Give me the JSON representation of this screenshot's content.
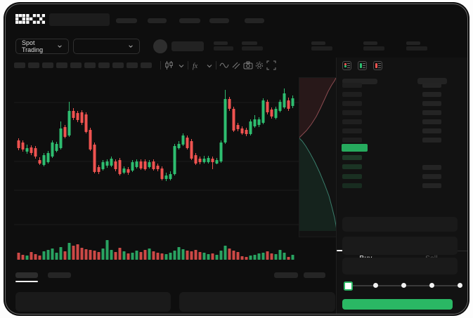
{
  "header": {
    "logo": "OKX",
    "nav_placeholder_count": 5
  },
  "toolbar": {
    "pair_selector_label": "Spot Trading",
    "timeframe_placeholder_count": 10,
    "icons": [
      "candlestick-type-icon",
      "chevron-down-icon",
      "indicator-fx-icon",
      "chevron-down-icon",
      "line-tool-icon",
      "draw-tool-icon",
      "camera-icon",
      "settings-gear-icon",
      "fullscreen-icon"
    ]
  },
  "chart_data": {
    "type": "candlestick",
    "title": "Spot trading price chart (labels not rendered in screenshot)",
    "unit": "relative price units (no axis labels visible)",
    "up_color": "#2ebd70",
    "down_color": "#ef5350",
    "grid": true,
    "candles_ohlc": [
      [
        138,
        141,
        124,
        127
      ],
      [
        135,
        138,
        122,
        125
      ],
      [
        122,
        132,
        119,
        127
      ],
      [
        128,
        131,
        117,
        120
      ],
      [
        127,
        130,
        112,
        115
      ],
      [
        110,
        114,
        103,
        105
      ],
      [
        103,
        120,
        101,
        117
      ],
      [
        107,
        123,
        105,
        120
      ],
      [
        115,
        138,
        113,
        135
      ],
      [
        123,
        136,
        121,
        133
      ],
      [
        127,
        165,
        125,
        155
      ],
      [
        157,
        160,
        141,
        143
      ],
      [
        145,
        193,
        143,
        180
      ],
      [
        180,
        184,
        167,
        170
      ],
      [
        177,
        180,
        164,
        167
      ],
      [
        178,
        181,
        160,
        163
      ],
      [
        175,
        178,
        148,
        150
      ],
      [
        153,
        156,
        123,
        125
      ],
      [
        132,
        135,
        91,
        93
      ],
      [
        100,
        103,
        90,
        93
      ],
      [
        97,
        110,
        95,
        107
      ],
      [
        102,
        111,
        99,
        108
      ],
      [
        102,
        115,
        100,
        112
      ],
      [
        108,
        111,
        94,
        97
      ],
      [
        110,
        113,
        88,
        90
      ],
      [
        92,
        101,
        90,
        98
      ],
      [
        97,
        100,
        89,
        92
      ],
      [
        95,
        110,
        93,
        107
      ],
      [
        100,
        111,
        98,
        108
      ],
      [
        108,
        111,
        96,
        98
      ],
      [
        108,
        111,
        95,
        97
      ],
      [
        100,
        110,
        98,
        107
      ],
      [
        108,
        111,
        95,
        97
      ],
      [
        102,
        105,
        94,
        97
      ],
      [
        98,
        101,
        81,
        83
      ],
      [
        83,
        92,
        80,
        88
      ],
      [
        83,
        94,
        81,
        90
      ],
      [
        90,
        133,
        88,
        130
      ],
      [
        127,
        137,
        125,
        133
      ],
      [
        132,
        148,
        130,
        145
      ],
      [
        142,
        145,
        125,
        127
      ],
      [
        137,
        140,
        110,
        112
      ],
      [
        117,
        120,
        103,
        105
      ],
      [
        112,
        115,
        104,
        107
      ],
      [
        107,
        116,
        105,
        112
      ],
      [
        107,
        116,
        105,
        113
      ],
      [
        112,
        115,
        97,
        107
      ],
      [
        105,
        113,
        104,
        110
      ],
      [
        108,
        138,
        106,
        135
      ],
      [
        135,
        210,
        133,
        197
      ],
      [
        197,
        200,
        180,
        183
      ],
      [
        183,
        186,
        150,
        152
      ],
      [
        160,
        163,
        151,
        154
      ],
      [
        155,
        158,
        146,
        148
      ],
      [
        153,
        156,
        144,
        147
      ],
      [
        147,
        168,
        145,
        165
      ],
      [
        158,
        174,
        156,
        168
      ],
      [
        160,
        171,
        157,
        168
      ],
      [
        163,
        198,
        161,
        195
      ],
      [
        193,
        196,
        175,
        178
      ],
      [
        182,
        185,
        169,
        172
      ],
      [
        170,
        186,
        168,
        183
      ],
      [
        180,
        196,
        178,
        193
      ],
      [
        185,
        212,
        183,
        205
      ],
      [
        195,
        199,
        180,
        183
      ],
      [
        187,
        202,
        184,
        198
      ]
    ],
    "volume": [
      10,
      7,
      6,
      11,
      8,
      6,
      12,
      14,
      16,
      10,
      18,
      12,
      24,
      20,
      22,
      17,
      15,
      14,
      13,
      11,
      16,
      28,
      14,
      11,
      17,
      12,
      9,
      10,
      13,
      11,
      14,
      16,
      12,
      10,
      9,
      8,
      10,
      13,
      18,
      15,
      13,
      12,
      14,
      11,
      10,
      8,
      9,
      7,
      13,
      20,
      16,
      13,
      11,
      5,
      4,
      6,
      7,
      9,
      10,
      12,
      9,
      8,
      14,
      10,
      4,
      7
    ]
  },
  "depth_overlay": {
    "ask_line": [
      [
        52,
        0
      ],
      [
        50,
        4
      ],
      [
        46,
        10
      ],
      [
        41,
        19
      ],
      [
        36,
        30
      ],
      [
        30,
        43
      ],
      [
        24,
        55
      ],
      [
        17,
        66
      ],
      [
        10,
        75
      ],
      [
        4,
        81
      ],
      [
        0,
        85
      ]
    ],
    "bid_line": [
      [
        0,
        86
      ],
      [
        4,
        90
      ],
      [
        9,
        97
      ],
      [
        15,
        107
      ],
      [
        22,
        120
      ],
      [
        29,
        135
      ],
      [
        36,
        152
      ],
      [
        42,
        168
      ],
      [
        46,
        183
      ],
      [
        50,
        199
      ],
      [
        52,
        210
      ],
      [
        53,
        218
      ]
    ],
    "ask_fill": "rgba(235,80,90,0.10)",
    "ask_stroke": "rgba(230,120,130,0.55)",
    "bid_fill": "rgba(45,190,125,0.10)",
    "bid_stroke": "rgba(90,205,175,0.55)"
  },
  "order_book": {
    "view_icons": [
      "orderbook-split-view-icon",
      "orderbook-bids-view-icon",
      "orderbook-asks-view-icon"
    ],
    "ask_row_count": 7,
    "bid_row_count": 4,
    "bid_right_row_count": 3,
    "last_price_color": "#26ab5e"
  },
  "trade_panel": {
    "buy_tab": "Buy",
    "sell_tab": "Sell",
    "active_tab": "Buy",
    "field_count": 3,
    "slider_percents": [
      0,
      25,
      50,
      75,
      100
    ],
    "slider_value": 0,
    "submit_color": "#2ab864"
  },
  "colors": {
    "up": "#2ebd70",
    "down": "#ef5350",
    "accent": "#2ab864",
    "background": "#0e0e0e"
  }
}
